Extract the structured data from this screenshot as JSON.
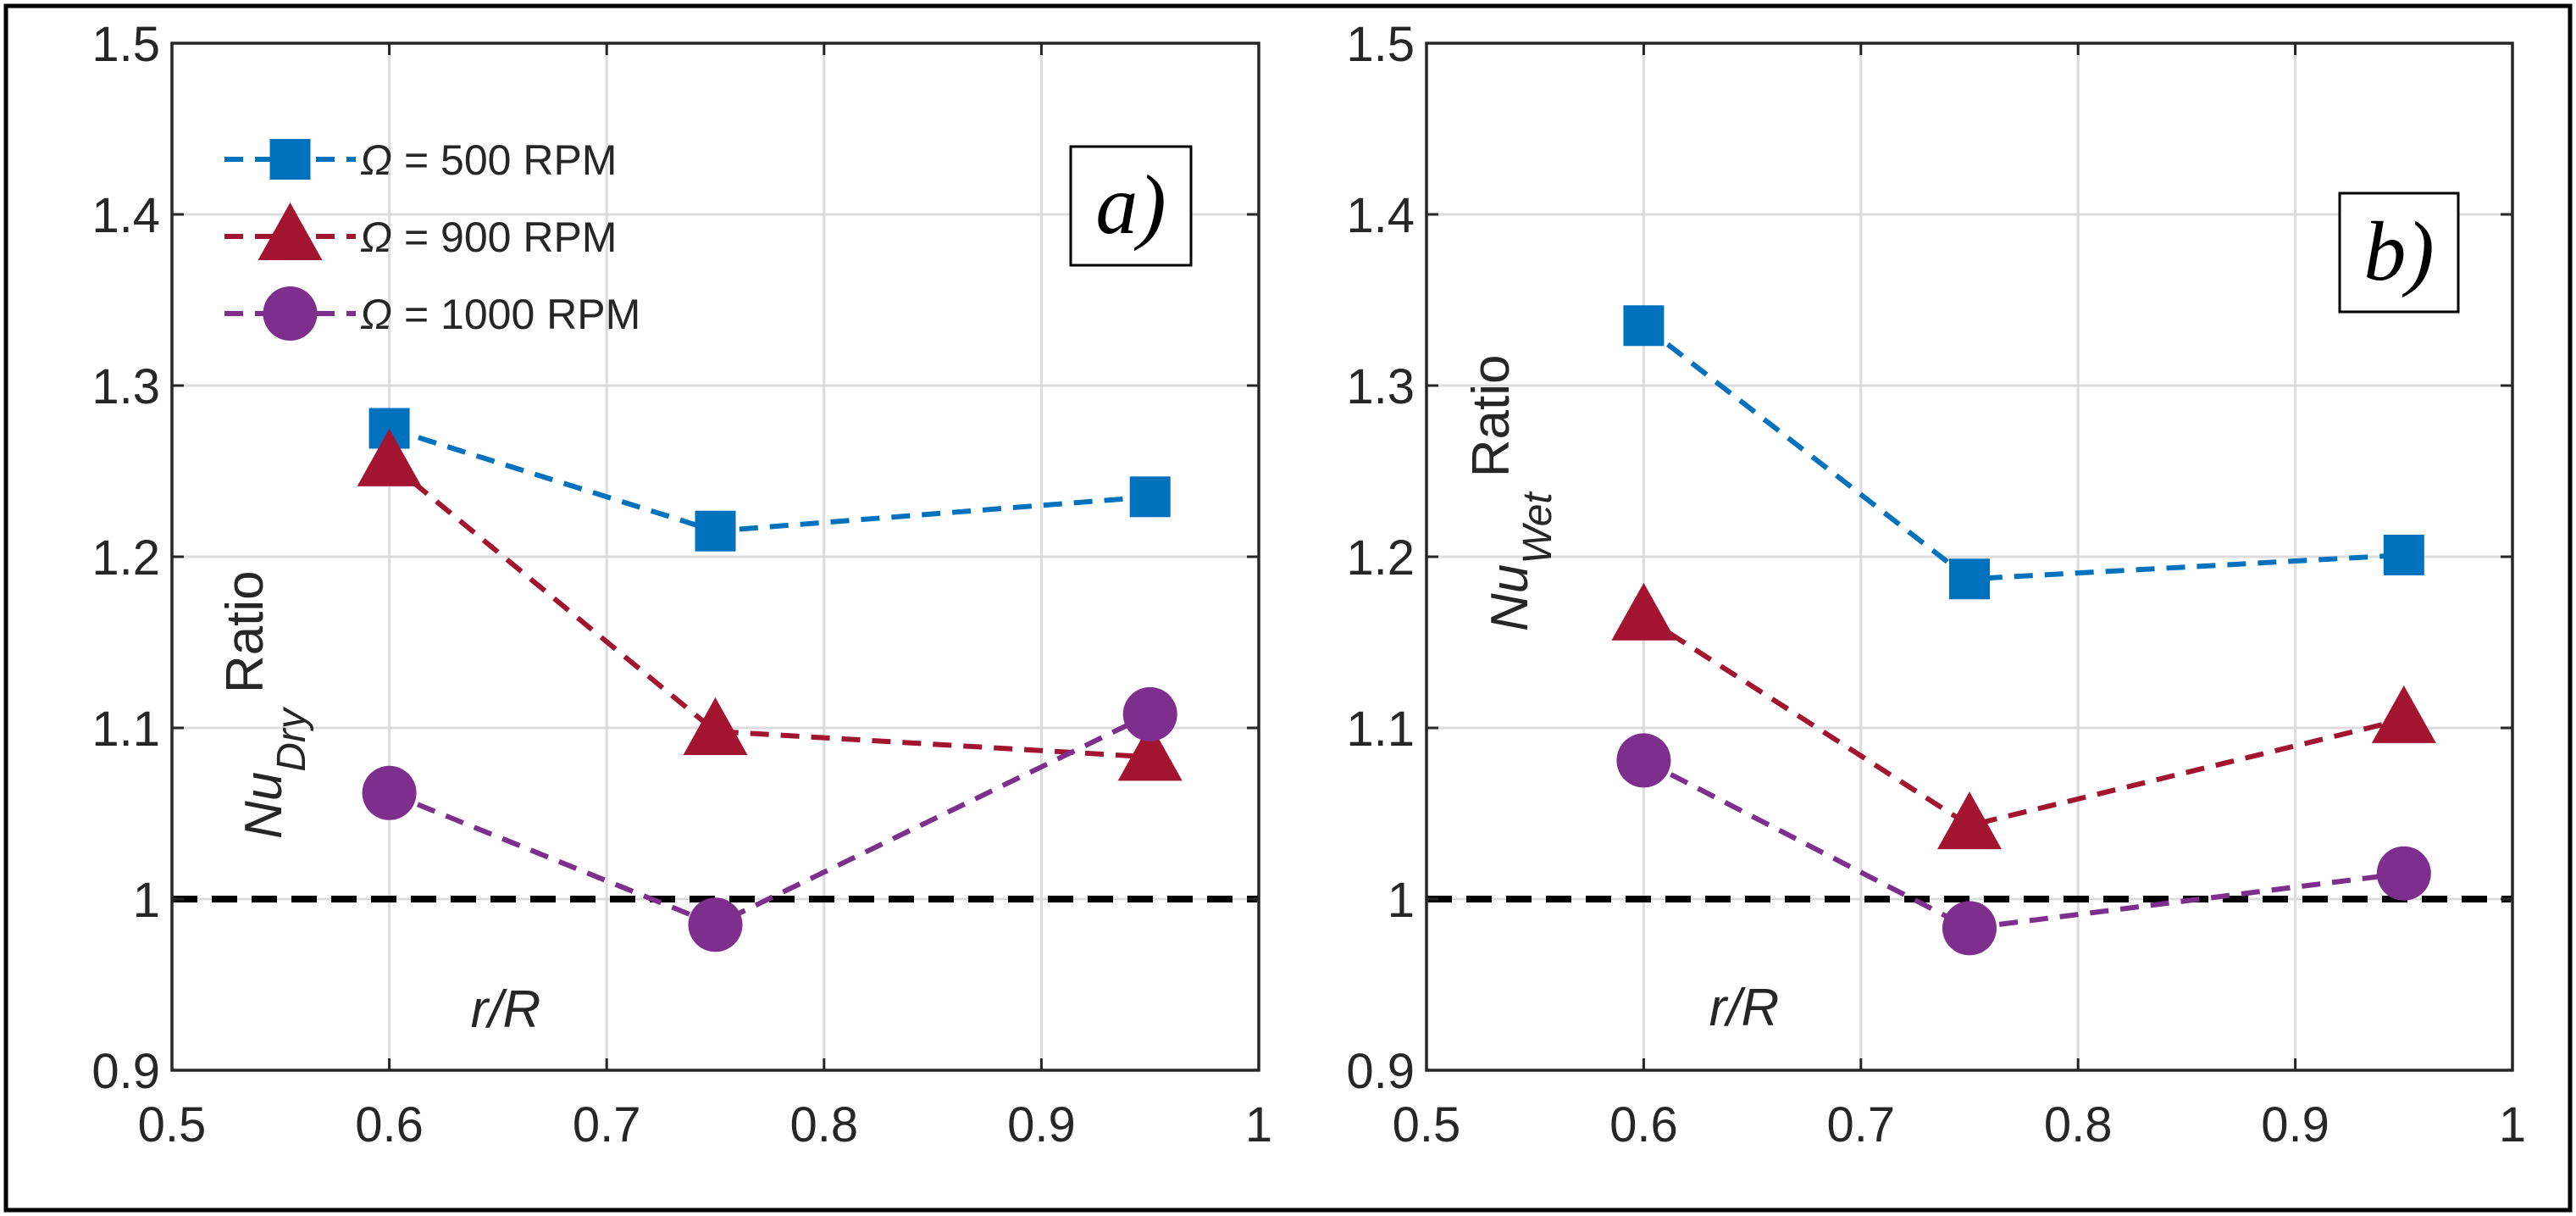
{
  "chart_data": [
    {
      "type": "line",
      "panel_label": "a)",
      "x": [
        0.6,
        0.75,
        0.95
      ],
      "series": [
        {
          "name": "Ω = 500 RPM",
          "marker": "square",
          "color": "#0072BD",
          "values": [
            1.275,
            1.215,
            1.235
          ]
        },
        {
          "name": "Ω = 900 RPM",
          "marker": "triangle",
          "color": "#A2142F",
          "values": [
            1.255,
            1.098,
            1.083
          ]
        },
        {
          "name": "Ω = 1000 RPM",
          "marker": "circle",
          "color": "#7E2F8E",
          "values": [
            1.062,
            0.985,
            1.108
          ]
        }
      ],
      "reference_line": {
        "y": 1.0,
        "color": "#000000",
        "style": "dashed"
      },
      "xlabel": "r/R",
      "ylabel": {
        "main": "Nu",
        "subscript": "Dry",
        "suffix": "Ratio"
      },
      "xlim": [
        0.5,
        1.0
      ],
      "ylim": [
        0.9,
        1.5
      ],
      "xticks": [
        0.5,
        0.6,
        0.7,
        0.8,
        0.9,
        1.0
      ],
      "xtick_labels": [
        "0.5",
        "0.6",
        "0.7",
        "0.8",
        "0.9",
        "1"
      ],
      "yticks": [
        0.9,
        1.0,
        1.1,
        1.2,
        1.3,
        1.4,
        1.5
      ],
      "ytick_labels": [
        "0.9",
        "1",
        "1.1",
        "1.2",
        "1.3",
        "1.4",
        "1.5"
      ],
      "grid": true,
      "legend": {
        "placement": "top-left",
        "symbol": "Ω",
        "entries": [
          " = 500 RPM",
          " = 900 RPM",
          " = 1000 RPM"
        ]
      }
    },
    {
      "type": "line",
      "panel_label": "b)",
      "x": [
        0.6,
        0.75,
        0.95
      ],
      "series": [
        {
          "name": "Ω = 500 RPM",
          "marker": "square",
          "color": "#0072BD",
          "values": [
            1.335,
            1.187,
            1.201
          ]
        },
        {
          "name": "Ω = 900 RPM",
          "marker": "triangle",
          "color": "#A2142F",
          "values": [
            1.165,
            1.043,
            1.105
          ]
        },
        {
          "name": "Ω = 1000 RPM",
          "marker": "circle",
          "color": "#7E2F8E",
          "values": [
            1.081,
            0.983,
            1.015
          ]
        }
      ],
      "reference_line": {
        "y": 1.0,
        "color": "#000000",
        "style": "dashed"
      },
      "xlabel": "r/R",
      "ylabel": {
        "main": "Nu",
        "subscript": "Wet",
        "suffix": "Ratio"
      },
      "xlim": [
        0.5,
        1.0
      ],
      "ylim": [
        0.9,
        1.5
      ],
      "xticks": [
        0.5,
        0.6,
        0.7,
        0.8,
        0.9,
        1.0
      ],
      "xtick_labels": [
        "0.5",
        "0.6",
        "0.7",
        "0.8",
        "0.9",
        "1"
      ],
      "yticks": [
        0.9,
        1.0,
        1.1,
        1.2,
        1.3,
        1.4,
        1.5
      ],
      "ytick_labels": [
        "0.9",
        "1",
        "1.1",
        "1.2",
        "1.3",
        "1.4",
        "1.5"
      ],
      "grid": true
    }
  ]
}
